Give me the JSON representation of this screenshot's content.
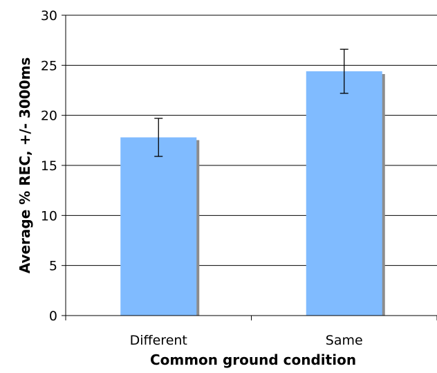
{
  "chart_data": {
    "type": "bar",
    "title": "",
    "xlabel": "Common ground condition",
    "ylabel": "Average % REC, +/- 3000ms",
    "categories": [
      "Different",
      "Same"
    ],
    "values": [
      17.8,
      24.4
    ],
    "error_low": [
      15.9,
      22.2
    ],
    "error_high": [
      19.7,
      26.6
    ],
    "ylim": [
      0,
      30
    ],
    "yticks": [
      0,
      5,
      10,
      15,
      20,
      25,
      30
    ],
    "grid": true,
    "legend": "none",
    "bar_color": "#80BBFF",
    "bar_shadow_color": "#8C8C8C",
    "error_bar_color": "#000000",
    "gridline_color": "#000000"
  }
}
